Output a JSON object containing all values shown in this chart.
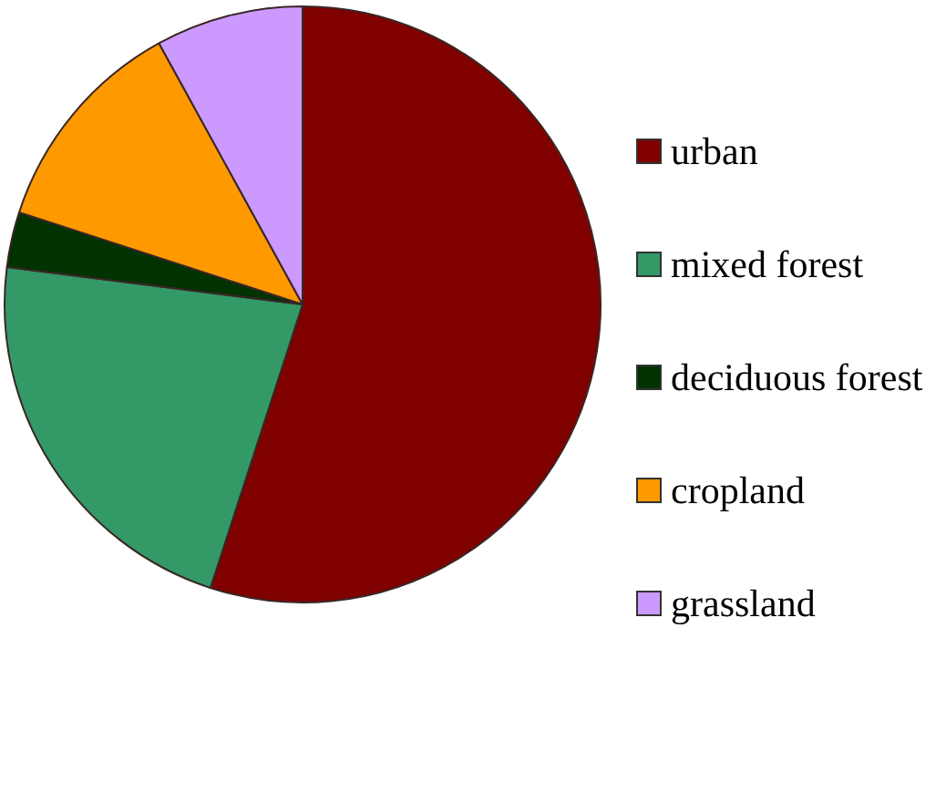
{
  "chart_data": {
    "type": "pie",
    "categories": [
      "urban",
      "mixed forest",
      "deciduous forest",
      "cropland",
      "grassland"
    ],
    "values": [
      55,
      22,
      3,
      12,
      8
    ],
    "colors": [
      "#800000",
      "#339966",
      "#003300",
      "#ff9900",
      "#cc99ff"
    ],
    "legend": "right"
  }
}
